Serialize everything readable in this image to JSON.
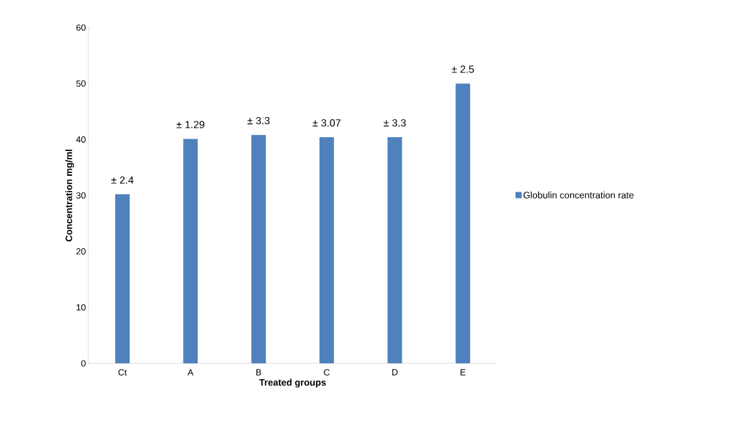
{
  "chart_data": {
    "type": "bar",
    "xlabel": "Treated groups",
    "ylabel": "Concentration mg/ml",
    "categories": [
      "Ct",
      "A",
      "B",
      "C",
      "D",
      "E"
    ],
    "series": [
      {
        "name": "Globulin concentration rate",
        "color": "#4f81bd",
        "values": [
          30.2,
          40.1,
          40.8,
          40.4,
          40.4,
          50.0
        ]
      }
    ],
    "annotations": [
      {
        "text": "± 2.4",
        "x": "Ct",
        "y": 30.2
      },
      {
        "text": "± 1.29",
        "x": "A",
        "y": 40.1
      },
      {
        "text": "± 3.3",
        "x": "B",
        "y": 40.8
      },
      {
        "text": "± 3.07",
        "x": "C",
        "y": 40.4
      },
      {
        "text": "± 3.3",
        "x": "D",
        "y": 40.4
      },
      {
        "text": "± 2.5",
        "x": "E",
        "y": 50.0
      }
    ],
    "ylim": [
      0,
      60
    ],
    "yticks": [
      0,
      10,
      20,
      30,
      40,
      50,
      60
    ],
    "legend": "right"
  }
}
